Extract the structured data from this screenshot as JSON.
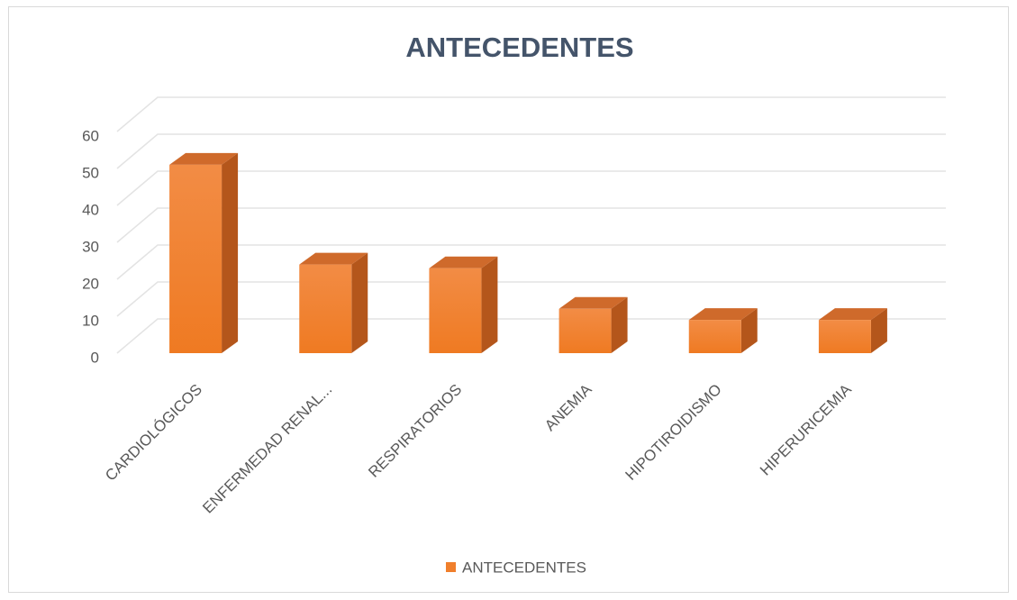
{
  "chart_data": {
    "type": "bar3d",
    "title": "ANTECEDENTES",
    "categories": [
      "CARDIOLÓGICOS",
      "ENFERMEDAD RENAL...",
      "RESPIRATORIOS",
      "ANEMIA",
      "HIPOTIROIDISMO",
      "HIPERURICEMIA"
    ],
    "series": [
      {
        "name": "ANTECEDENTES",
        "color": "#f07f2c",
        "values": [
          51,
          24,
          23,
          12,
          9,
          9
        ]
      }
    ],
    "ylim": [
      0,
      60
    ],
    "yticks": [
      0,
      10,
      20,
      30,
      40,
      50,
      60
    ],
    "grid": true,
    "legend": "bottom"
  }
}
